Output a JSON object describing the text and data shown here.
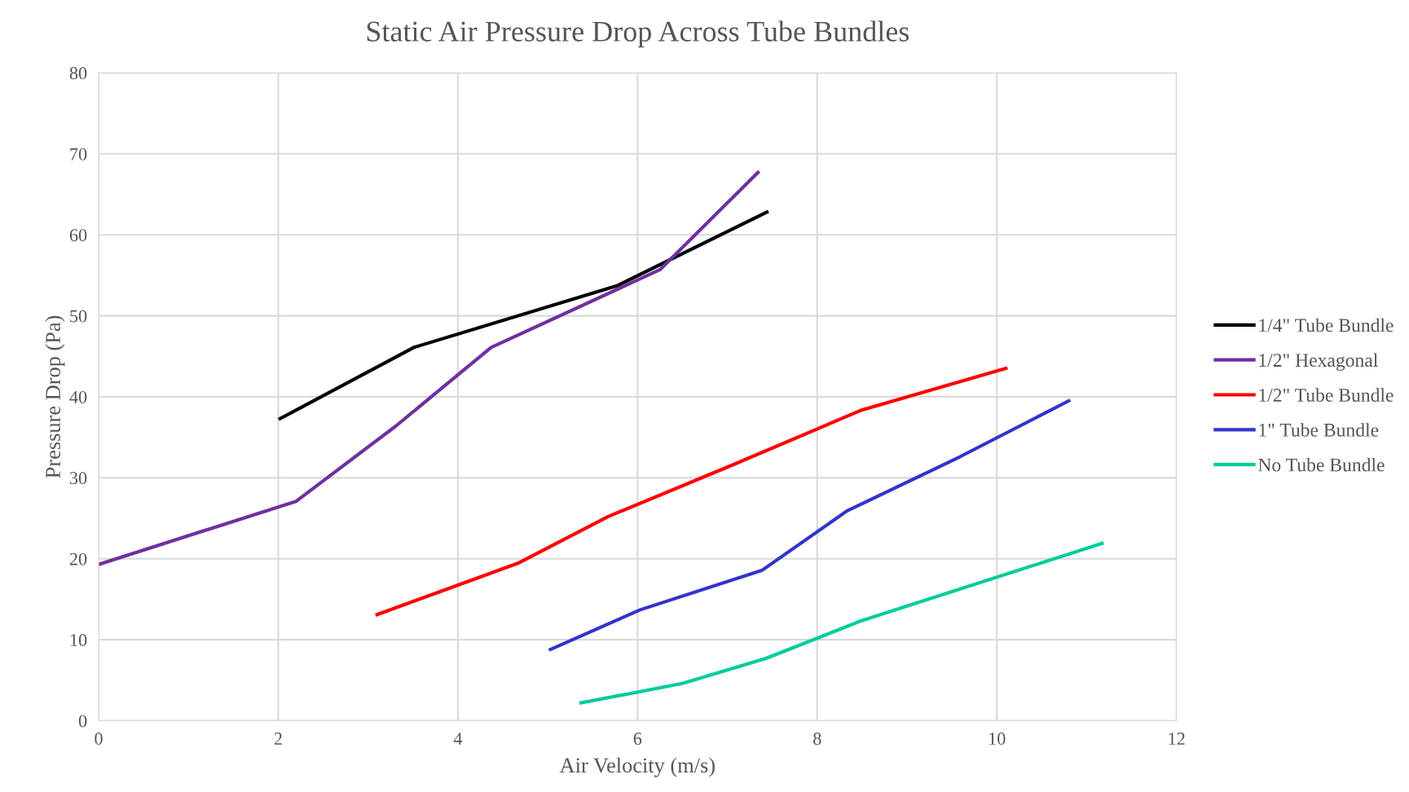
{
  "chart_data": {
    "type": "line",
    "title": "Static Air Pressure Drop Across Tube Bundles",
    "xlabel": "Air Velocity (m/s)",
    "ylabel": "Pressure Drop (Pa)",
    "xlim": [
      0,
      12
    ],
    "xticks": [
      0,
      2,
      4,
      6,
      8,
      10,
      12
    ],
    "ylim": [
      0,
      80
    ],
    "yticks": [
      0,
      10,
      20,
      30,
      40,
      50,
      60,
      70,
      80
    ],
    "grid": true,
    "legend": "right",
    "marker": "none",
    "series": [
      {
        "name": "1/4\" Tube Bundle",
        "color": "#000000",
        "x": [
          2.02,
          3.51,
          5.77,
          7.44
        ],
        "values": [
          37.3,
          46.1,
          53.7,
          62.8
        ]
      },
      {
        "name": "1/2\" Hexagonal",
        "color": "#7030a0",
        "x": [
          0,
          2.2,
          3.31,
          4.37,
          6.25,
          7.34
        ],
        "values": [
          19.3,
          27.1,
          36.4,
          46.1,
          55.7,
          67.7
        ]
      },
      {
        "name": "1/2\" Tube Bundle",
        "color": "#ff0000",
        "x": [
          3.1,
          4.68,
          5.67,
          7.06,
          8.48,
          10.1
        ],
        "values": [
          13.1,
          19.5,
          25.2,
          31.6,
          38.3,
          43.5
        ]
      },
      {
        "name": "1\" Tube Bundle",
        "color": "#3333cc",
        "x": [
          5.03,
          6.03,
          7.39,
          8.33,
          9.59,
          10.8
        ],
        "values": [
          8.8,
          13.7,
          18.6,
          25.9,
          32.6,
          39.5
        ]
      },
      {
        "name": "No Tube Bundle",
        "color": "#00cc99",
        "x": [
          5.37,
          6.5,
          7.43,
          8.48,
          11.17
        ],
        "values": [
          2.2,
          4.6,
          7.7,
          12.3,
          21.9
        ]
      }
    ]
  }
}
